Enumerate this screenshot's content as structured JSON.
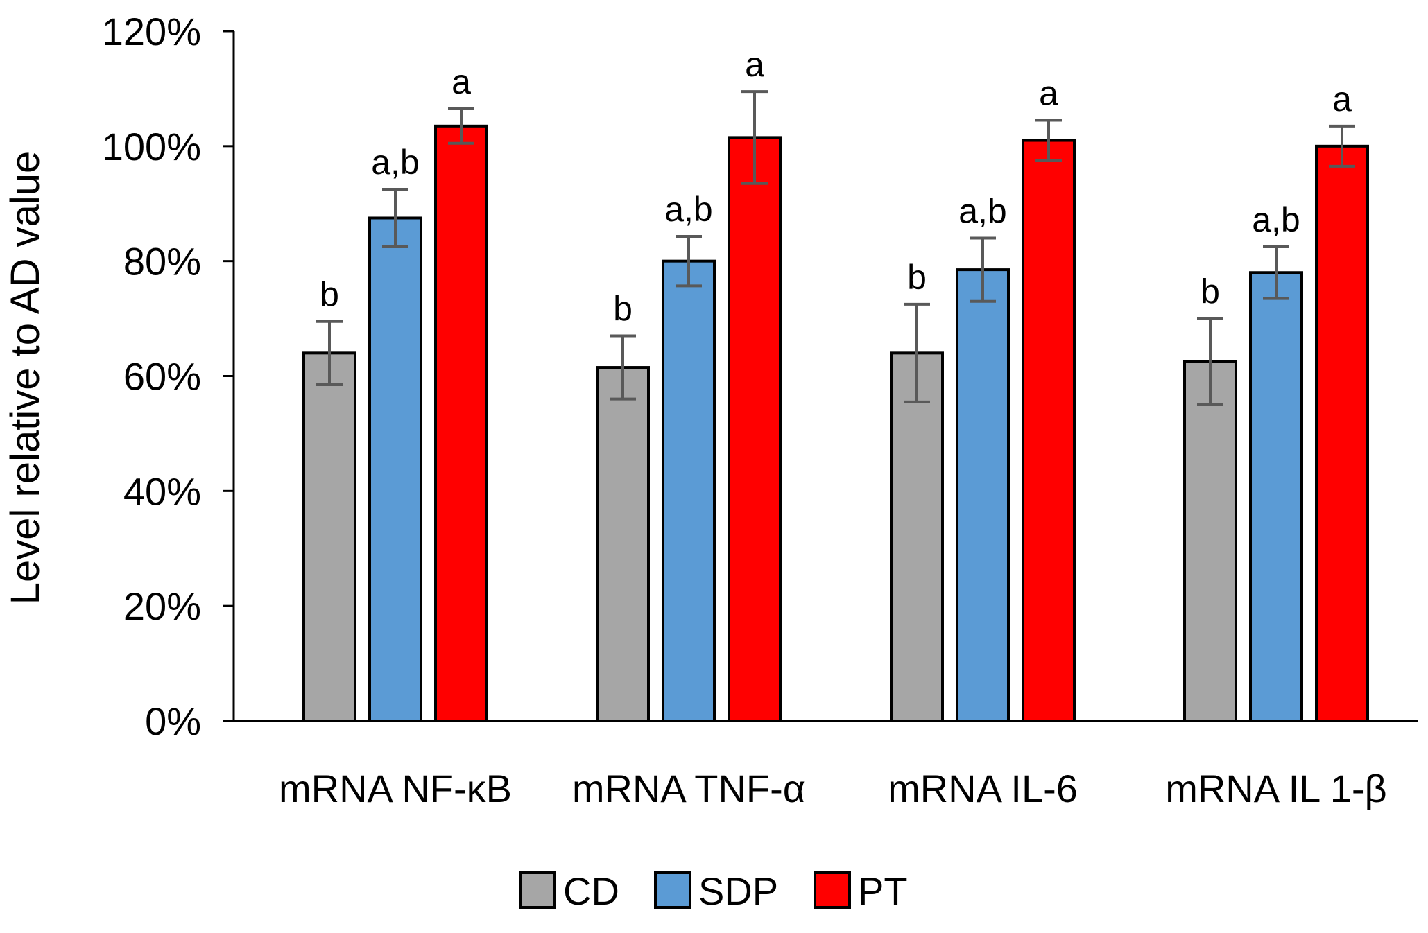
{
  "chart_data": {
    "type": "bar",
    "title": "",
    "xlabel": "",
    "ylabel": "Level relative to AD value",
    "ylim": [
      0,
      120
    ],
    "yticks": [
      0,
      20,
      40,
      60,
      80,
      100,
      120
    ],
    "ytick_labels": [
      "0%",
      "20%",
      "40%",
      "60%",
      "80%",
      "100%",
      "120%"
    ],
    "categories": [
      "mRNA NF-κB",
      "mRNA TNF-α",
      "mRNA IL-6",
      "mRNA IL 1-β"
    ],
    "series": [
      {
        "name": "CD",
        "color": "#a6a6a6",
        "values": [
          64,
          61.5,
          64,
          62.5
        ],
        "errors": [
          5.5,
          5.5,
          8.5,
          7.5
        ],
        "significance": [
          "b",
          "b",
          "b",
          "b"
        ]
      },
      {
        "name": "SDP",
        "color": "#5b9bd5",
        "values": [
          87.5,
          80,
          78.5,
          78
        ],
        "errors": [
          5,
          4.3,
          5.5,
          4.5
        ],
        "significance": [
          "a,b",
          "a,b",
          "a,b",
          "a,b"
        ]
      },
      {
        "name": "PT",
        "color": "#ff0000",
        "values": [
          103.5,
          101.5,
          101,
          100
        ],
        "errors": [
          3,
          8,
          3.5,
          3.5
        ],
        "significance": [
          "a",
          "a",
          "a",
          "a"
        ]
      }
    ],
    "legend": {
      "position": "bottom",
      "entries": [
        "CD",
        "SDP",
        "PT"
      ]
    },
    "grid": false
  }
}
